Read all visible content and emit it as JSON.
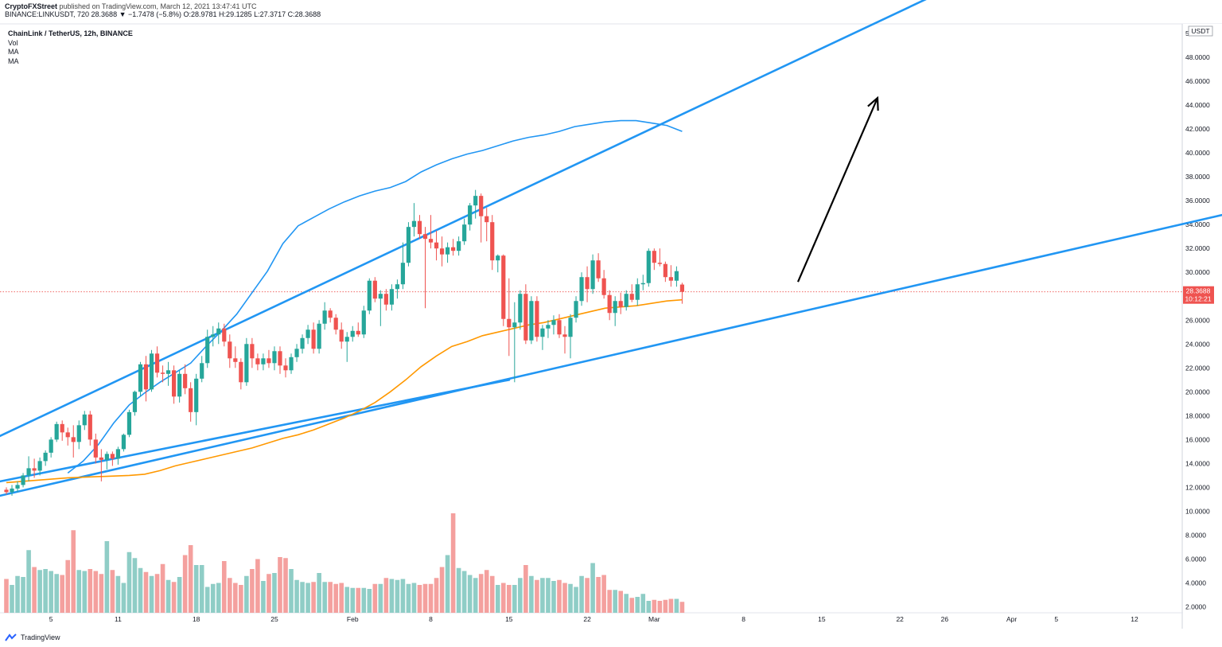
{
  "header": {
    "publisher": "CryptoFXStreet",
    "published_text": "published on TradingView.com, March 12, 2021 13:47:41 UTC",
    "ohlc_line": "BINANCE:LINKUSDT, 720 28.3688 ▼ −1.7478 (−5.8%) O:28.9781 H:29.1285 L:27.3717 C:28.3688"
  },
  "legend": {
    "title": "ChainLink / TetherUS, 12h, BINANCE",
    "vol": "Vol",
    "ma1": "MA",
    "ma2": "MA"
  },
  "footer": {
    "brand": "TradingView"
  },
  "colors": {
    "up": "#26a69a",
    "down": "#ef5350",
    "vol_up": "#8fcdc6",
    "vol_down": "#f4a09e",
    "ma_blue": "#2196f3",
    "ma_orange": "#ff9800",
    "trendline": "#2196f3",
    "arrow": "#000000",
    "price_line": "#ef5350"
  },
  "chart_data": {
    "type": "candlestick",
    "title": "ChainLink / TetherUS, 12h, BINANCE",
    "currency": "USDT",
    "current_price": "28.3688",
    "countdown": "10:12:21",
    "y_range": [
      1.5,
      50.8
    ],
    "y_ticks": [
      "2.0000",
      "4.0000",
      "6.0000",
      "8.0000",
      "10.0000",
      "12.0000",
      "14.0000",
      "16.0000",
      "18.0000",
      "20.0000",
      "22.0000",
      "24.0000",
      "26.0000",
      "28.0000",
      "30.0000",
      "32.0000",
      "34.0000",
      "36.0000",
      "38.0000",
      "40.0000",
      "42.0000",
      "44.0000",
      "46.0000",
      "48.0000",
      "50.0000"
    ],
    "x_ticks": [
      {
        "label": "5",
        "bar": 8
      },
      {
        "label": "11",
        "bar": 20
      },
      {
        "label": "18",
        "bar": 34
      },
      {
        "label": "25",
        "bar": 48
      },
      {
        "label": "Feb",
        "bar": 62
      },
      {
        "label": "8",
        "bar": 76
      },
      {
        "label": "15",
        "bar": 90
      },
      {
        "label": "22",
        "bar": 104
      },
      {
        "label": "Mar",
        "bar": 116
      },
      {
        "label": "8",
        "bar": 132
      },
      {
        "label": "15",
        "bar": 146
      },
      {
        "label": "22",
        "bar": 160
      },
      {
        "label": "26",
        "bar": 168
      },
      {
        "label": "Apr",
        "bar": 180
      },
      {
        "label": "5",
        "bar": 188
      },
      {
        "label": "12",
        "bar": 202
      }
    ],
    "candles": [
      [
        11.8,
        12.0,
        11.4,
        11.6
      ],
      [
        11.6,
        12.2,
        11.3,
        11.9
      ],
      [
        11.9,
        12.5,
        11.6,
        12.2
      ],
      [
        12.2,
        13.2,
        12.0,
        13.0
      ],
      [
        13.0,
        14.6,
        12.5,
        13.6
      ],
      [
        13.6,
        14.4,
        12.8,
        13.4
      ],
      [
        13.4,
        14.5,
        13.0,
        14.2
      ],
      [
        14.2,
        15.1,
        13.8,
        14.9
      ],
      [
        14.9,
        16.2,
        14.5,
        16.0
      ],
      [
        16.0,
        17.5,
        15.8,
        17.3
      ],
      [
        17.3,
        17.6,
        15.9,
        16.6
      ],
      [
        16.6,
        17.0,
        15.5,
        16.2
      ],
      [
        16.2,
        17.2,
        14.5,
        15.8
      ],
      [
        15.8,
        17.6,
        15.2,
        17.2
      ],
      [
        17.2,
        18.4,
        16.8,
        18.1
      ],
      [
        18.1,
        18.4,
        15.5,
        16.0
      ],
      [
        16.0,
        16.5,
        14.0,
        14.5
      ],
      [
        14.5,
        15.2,
        12.5,
        14.3
      ],
      [
        14.3,
        15.0,
        13.5,
        14.8
      ],
      [
        14.8,
        15.0,
        13.8,
        14.4
      ],
      [
        14.4,
        15.4,
        13.9,
        15.2
      ],
      [
        15.2,
        16.5,
        15.0,
        16.4
      ],
      [
        16.4,
        18.5,
        16.2,
        18.3
      ],
      [
        18.3,
        20.1,
        18.0,
        20.0
      ],
      [
        20.0,
        22.5,
        19.6,
        22.3
      ],
      [
        22.3,
        23.0,
        19.2,
        20.2
      ],
      [
        20.2,
        23.5,
        20.0,
        23.2
      ],
      [
        23.2,
        23.8,
        21.2,
        21.6
      ],
      [
        21.6,
        22.2,
        20.8,
        21.5
      ],
      [
        21.5,
        22.5,
        20.5,
        21.8
      ],
      [
        21.8,
        22.2,
        19.0,
        19.6
      ],
      [
        19.6,
        21.8,
        19.1,
        21.5
      ],
      [
        21.5,
        22.3,
        19.8,
        20.3
      ],
      [
        20.3,
        20.8,
        17.5,
        18.3
      ],
      [
        18.3,
        21.5,
        17.2,
        21.1
      ],
      [
        21.1,
        23.0,
        20.8,
        22.4
      ],
      [
        22.4,
        25.2,
        22.0,
        24.6
      ],
      [
        24.6,
        25.5,
        23.8,
        24.8
      ],
      [
        24.8,
        25.8,
        24.0,
        25.3
      ],
      [
        25.3,
        25.7,
        23.8,
        24.2
      ],
      [
        24.2,
        24.8,
        22.0,
        22.8
      ],
      [
        22.8,
        23.8,
        22.0,
        22.5
      ],
      [
        22.5,
        22.8,
        20.2,
        20.8
      ],
      [
        20.8,
        24.5,
        20.5,
        24.0
      ],
      [
        24.0,
        24.5,
        22.0,
        22.8
      ],
      [
        22.8,
        23.2,
        21.8,
        22.3
      ],
      [
        22.3,
        23.2,
        21.8,
        22.8
      ],
      [
        22.8,
        23.5,
        22.0,
        22.4
      ],
      [
        22.4,
        23.8,
        21.8,
        23.4
      ],
      [
        23.4,
        23.8,
        21.5,
        22.2
      ],
      [
        22.2,
        22.8,
        21.2,
        21.8
      ],
      [
        21.8,
        23.2,
        21.5,
        22.9
      ],
      [
        22.9,
        24.0,
        22.5,
        23.6
      ],
      [
        23.6,
        24.8,
        23.2,
        24.5
      ],
      [
        24.5,
        25.6,
        24.0,
        25.2
      ],
      [
        25.2,
        25.8,
        23.2,
        23.6
      ],
      [
        23.6,
        26.0,
        23.2,
        25.7
      ],
      [
        25.7,
        27.5,
        25.2,
        26.8
      ],
      [
        26.8,
        27.0,
        25.8,
        26.2
      ],
      [
        26.2,
        26.5,
        24.8,
        25.2
      ],
      [
        25.2,
        25.8,
        23.6,
        24.2
      ],
      [
        24.2,
        25.0,
        22.5,
        24.6
      ],
      [
        24.6,
        25.5,
        24.2,
        25.1
      ],
      [
        25.1,
        25.8,
        24.6,
        24.8
      ],
      [
        24.8,
        27.2,
        24.5,
        26.8
      ],
      [
        26.8,
        29.5,
        26.5,
        29.3
      ],
      [
        29.3,
        29.6,
        27.5,
        27.8
      ],
      [
        27.8,
        28.5,
        25.5,
        28.2
      ],
      [
        28.2,
        28.6,
        26.8,
        27.3
      ],
      [
        27.3,
        29.0,
        26.8,
        28.6
      ],
      [
        28.6,
        29.4,
        27.8,
        29.0
      ],
      [
        29.0,
        32.5,
        28.6,
        30.8
      ],
      [
        30.8,
        34.2,
        30.5,
        33.8
      ],
      [
        33.8,
        35.8,
        33.0,
        34.3
      ],
      [
        34.3,
        34.8,
        32.8,
        33.2
      ],
      [
        33.2,
        33.8,
        27.0,
        32.8
      ],
      [
        32.8,
        34.8,
        32.0,
        32.5
      ],
      [
        32.5,
        33.5,
        31.0,
        32.0
      ],
      [
        32.0,
        33.0,
        30.5,
        31.5
      ],
      [
        31.5,
        32.5,
        30.8,
        32.1
      ],
      [
        32.1,
        32.8,
        31.4,
        31.8
      ],
      [
        31.8,
        33.0,
        31.4,
        32.6
      ],
      [
        32.6,
        34.5,
        32.3,
        34.0
      ],
      [
        34.0,
        35.8,
        33.5,
        35.6
      ],
      [
        35.6,
        36.9,
        34.5,
        36.4
      ],
      [
        36.4,
        36.6,
        32.5,
        34.7
      ],
      [
        34.7,
        35.4,
        32.6,
        34.2
      ],
      [
        34.2,
        34.8,
        30.2,
        31.0
      ],
      [
        31.0,
        31.5,
        30.0,
        31.4
      ],
      [
        31.4,
        31.5,
        25.5,
        26.1
      ],
      [
        26.1,
        29.5,
        23.0,
        25.4
      ],
      [
        25.4,
        27.5,
        20.8,
        25.8
      ],
      [
        25.8,
        28.5,
        25.2,
        28.2
      ],
      [
        28.2,
        29.0,
        24.0,
        24.3
      ],
      [
        24.3,
        28.0,
        24.0,
        27.6
      ],
      [
        27.6,
        28.0,
        24.2,
        24.6
      ],
      [
        24.6,
        25.6,
        23.5,
        25.3
      ],
      [
        25.3,
        26.0,
        24.5,
        25.6
      ],
      [
        25.6,
        26.4,
        24.8,
        26.0
      ],
      [
        26.0,
        26.5,
        24.5,
        24.8
      ],
      [
        24.8,
        25.5,
        23.2,
        24.6
      ],
      [
        24.6,
        26.5,
        22.8,
        26.2
      ],
      [
        26.2,
        28.0,
        25.8,
        27.6
      ],
      [
        27.6,
        30.0,
        27.2,
        29.6
      ],
      [
        29.6,
        30.5,
        27.5,
        28.6
      ],
      [
        28.6,
        31.5,
        28.2,
        31.0
      ],
      [
        31.0,
        31.6,
        29.2,
        29.5
      ],
      [
        29.5,
        30.2,
        27.8,
        28.1
      ],
      [
        28.1,
        28.5,
        26.0,
        26.6
      ],
      [
        26.6,
        28.0,
        25.5,
        27.6
      ],
      [
        27.6,
        28.3,
        26.5,
        27.1
      ],
      [
        27.1,
        28.5,
        26.8,
        28.2
      ],
      [
        28.2,
        29.0,
        27.5,
        27.7
      ],
      [
        27.7,
        29.5,
        27.2,
        29.0
      ],
      [
        29.0,
        29.8,
        28.5,
        29.1
      ],
      [
        29.1,
        32.0,
        28.8,
        31.8
      ],
      [
        31.8,
        32.0,
        30.2,
        30.8
      ],
      [
        30.8,
        32.0,
        30.5,
        30.7
      ],
      [
        30.7,
        30.9,
        29.2,
        29.6
      ],
      [
        29.6,
        30.6,
        28.8,
        29.3
      ],
      [
        29.3,
        30.5,
        28.8,
        30.1
      ],
      [
        28.9781,
        29.1285,
        27.3717,
        28.3688
      ]
    ],
    "volume_units": "relative (0-1)",
    "volumes": [
      0.34,
      0.28,
      0.37,
      0.36,
      0.63,
      0.46,
      0.43,
      0.44,
      0.42,
      0.39,
      0.38,
      0.53,
      0.83,
      0.43,
      0.42,
      0.44,
      0.42,
      0.39,
      0.72,
      0.43,
      0.37,
      0.3,
      0.61,
      0.55,
      0.45,
      0.41,
      0.37,
      0.39,
      0.49,
      0.33,
      0.31,
      0.36,
      0.58,
      0.68,
      0.48,
      0.48,
      0.26,
      0.29,
      0.3,
      0.52,
      0.35,
      0.3,
      0.28,
      0.37,
      0.44,
      0.54,
      0.32,
      0.39,
      0.4,
      0.56,
      0.55,
      0.44,
      0.33,
      0.31,
      0.3,
      0.31,
      0.4,
      0.31,
      0.31,
      0.29,
      0.3,
      0.26,
      0.25,
      0.25,
      0.25,
      0.24,
      0.29,
      0.29,
      0.35,
      0.34,
      0.33,
      0.34,
      0.29,
      0.3,
      0.28,
      0.29,
      0.29,
      0.35,
      0.46,
      0.58,
      1.0,
      0.45,
      0.42,
      0.38,
      0.35,
      0.39,
      0.43,
      0.37,
      0.28,
      0.3,
      0.28,
      0.28,
      0.35,
      0.48,
      0.37,
      0.33,
      0.35,
      0.35,
      0.32,
      0.33,
      0.3,
      0.29,
      0.26,
      0.37,
      0.35,
      0.5,
      0.36,
      0.38,
      0.23,
      0.23,
      0.22,
      0.19,
      0.15,
      0.16,
      0.19,
      0.12,
      0.13,
      0.12,
      0.13,
      0.14,
      0.14,
      0.11,
      0.08
    ],
    "ma_blue": [
      [
        0,
        null
      ],
      [
        20,
        13.2
      ],
      [
        25,
        14.2
      ],
      [
        30,
        15.6
      ],
      [
        35,
        17.4
      ],
      [
        40,
        18.9
      ],
      [
        45,
        19.9
      ],
      [
        50,
        20.8
      ],
      [
        55,
        21.6
      ],
      [
        60,
        22.4
      ],
      [
        65,
        23.8
      ],
      [
        70,
        25.1
      ],
      [
        75,
        26.5
      ],
      [
        80,
        28.3
      ],
      [
        85,
        30.1
      ],
      [
        90,
        32.4
      ],
      [
        95,
        33.9
      ],
      [
        100,
        34.6
      ],
      [
        105,
        35.3
      ],
      [
        110,
        35.9
      ],
      [
        115,
        36.4
      ],
      [
        120,
        36.8
      ],
      [
        125,
        37.1
      ],
      [
        130,
        37.6
      ],
      [
        135,
        38.4
      ],
      [
        140,
        39.0
      ],
      [
        145,
        39.5
      ],
      [
        150,
        39.9
      ],
      [
        155,
        40.2
      ],
      [
        160,
        40.6
      ],
      [
        165,
        41.0
      ],
      [
        170,
        41.3
      ],
      [
        175,
        41.5
      ],
      [
        180,
        41.8
      ],
      [
        185,
        42.2
      ],
      [
        190,
        42.4
      ],
      [
        195,
        42.6
      ],
      [
        200,
        42.7
      ],
      [
        205,
        42.7
      ],
      [
        210,
        42.5
      ],
      [
        215,
        42.3
      ],
      [
        220,
        41.8
      ]
    ],
    "ma_orange": [
      [
        0,
        12.4
      ],
      [
        20,
        12.8
      ],
      [
        40,
        13.0
      ],
      [
        45,
        13.1
      ],
      [
        50,
        13.4
      ],
      [
        55,
        13.8
      ],
      [
        60,
        14.1
      ],
      [
        65,
        14.4
      ],
      [
        70,
        14.7
      ],
      [
        75,
        15.0
      ],
      [
        80,
        15.3
      ],
      [
        85,
        15.7
      ],
      [
        90,
        16.1
      ],
      [
        95,
        16.4
      ],
      [
        100,
        16.8
      ],
      [
        105,
        17.3
      ],
      [
        110,
        17.8
      ],
      [
        115,
        18.4
      ],
      [
        120,
        19.1
      ],
      [
        125,
        20.0
      ],
      [
        130,
        21.0
      ],
      [
        135,
        22.1
      ],
      [
        140,
        23.0
      ],
      [
        145,
        23.8
      ],
      [
        150,
        24.2
      ],
      [
        155,
        24.7
      ],
      [
        160,
        25.0
      ],
      [
        165,
        25.3
      ],
      [
        170,
        25.6
      ],
      [
        175,
        25.8
      ],
      [
        180,
        26.1
      ],
      [
        185,
        26.4
      ],
      [
        190,
        26.7
      ],
      [
        195,
        27.0
      ],
      [
        200,
        27.1
      ],
      [
        205,
        27.2
      ],
      [
        210,
        27.4
      ],
      [
        215,
        27.6
      ],
      [
        220,
        27.7
      ]
    ],
    "trendlines": [
      {
        "name": "upper",
        "from": [
          0,
          16.3
        ],
        "to": [
          1200,
          54.0
        ]
      },
      {
        "name": "lower",
        "from": [
          0,
          11.3
        ],
        "to": [
          1536,
          34.8
        ]
      },
      {
        "name": "lower-2",
        "from": [
          0,
          12.5
        ],
        "to": [
          640,
          21.0
        ]
      }
    ],
    "arrow": {
      "from": [
        1003,
        29.2
      ],
      "to": [
        1103,
        44.6
      ]
    }
  }
}
